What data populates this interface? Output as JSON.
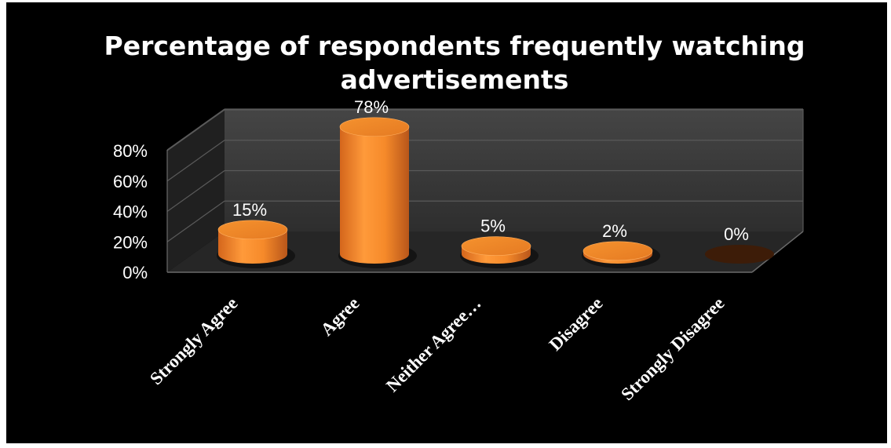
{
  "chart_data": {
    "type": "bar",
    "title": "Percentage of respondents frequently watching advertisements",
    "title_lines": [
      "Percentage of respondents frequently watching",
      "advertisements"
    ],
    "categories": [
      "Strongly Agree",
      "Agree",
      "Neither Agree…",
      "Disagree",
      "Strongly Disagree"
    ],
    "values": [
      15,
      78,
      5,
      2,
      0
    ],
    "data_labels": [
      "15%",
      "78%",
      "5%",
      "2%",
      "0%"
    ],
    "yticks": [
      "0%",
      "20%",
      "40%",
      "60%",
      "80%"
    ],
    "ylim": [
      0,
      80
    ],
    "xlabel": "",
    "ylabel": "",
    "grid": true,
    "legend": "none",
    "style": "3d-cylinder",
    "colors": {
      "bar": "#f08a2c",
      "bar_dark": "#c8601a",
      "bar_light": "#ffa84c",
      "background": "#000000",
      "wall": "#3a3a3a",
      "floor": "#262626",
      "gridline": "#5a5a5a"
    }
  }
}
